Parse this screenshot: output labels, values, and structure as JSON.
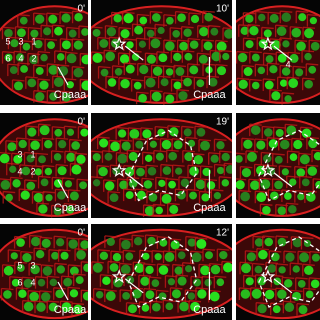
{
  "panels": [
    {
      "time": "0'",
      "numbers": [
        "5",
        "3",
        "1",
        "6",
        "4",
        "2"
      ],
      "cell": "Cpaaa"
    },
    {
      "time": "10'",
      "cell": "Cpaaa"
    },
    {
      "numbers": [
        "4"
      ]
    },
    {
      "time": "0'",
      "numbers": [
        "3",
        "1",
        "4",
        "2"
      ],
      "cell": "Cpaaa"
    },
    {
      "time": "19'",
      "cell": "Cpaaa"
    },
    {},
    {
      "time": "0'",
      "numbers": [
        "5",
        "3",
        "6",
        "4"
      ],
      "cell": "Cpaaa"
    },
    {
      "time": "12'",
      "cell": "Cpaaa"
    },
    {}
  ]
}
